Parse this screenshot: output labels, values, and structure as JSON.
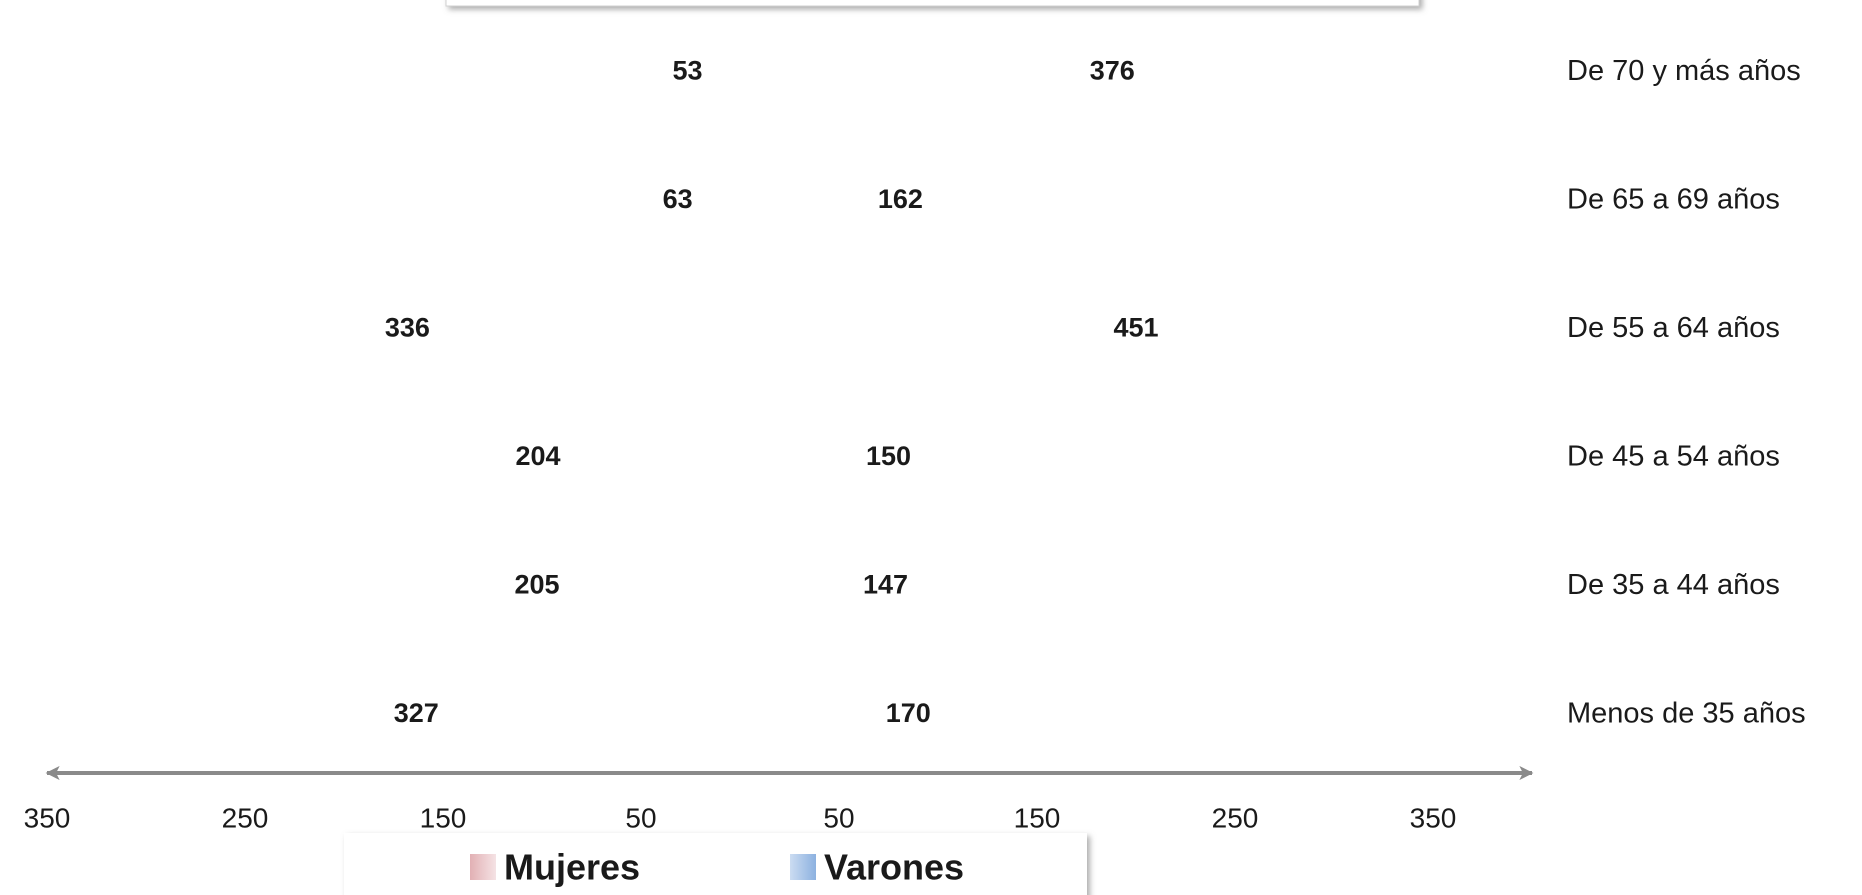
{
  "chart_data": {
    "type": "pyramid",
    "categories": [
      "De 70 y más años",
      "De 65 a 69 años",
      "De 55 a 64 años",
      "De 45 a 54 años",
      "De 35 a 44 años",
      "Menos de 35 años"
    ],
    "series": [
      {
        "name": "Mujeres",
        "color": "#e2b0b4",
        "values": [
          -53,
          -63,
          -336,
          -204,
          -205,
          -327
        ],
        "value_labels": [
          "53",
          "63",
          "336",
          "204",
          "205",
          "327"
        ]
      },
      {
        "name": "Varones",
        "color": "#8cb1e0",
        "values": [
          376,
          162,
          451,
          150,
          147,
          170
        ]
      }
    ],
    "xlim": [
      -350,
      400
    ],
    "xticks": [
      {
        "value": -350,
        "label": "350"
      },
      {
        "value": -250,
        "label": "250"
      },
      {
        "value": -150,
        "label": "150"
      },
      {
        "value": -50,
        "label": "50"
      },
      50,
      150,
      250,
      350
    ]
  }
}
